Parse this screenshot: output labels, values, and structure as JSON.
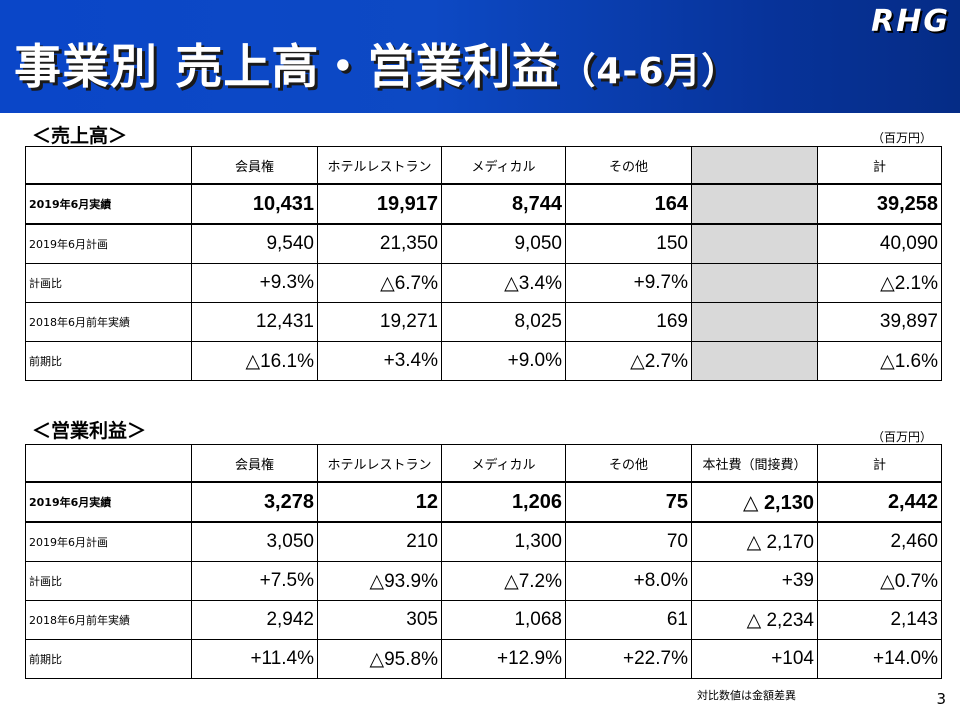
{
  "header": {
    "title_main": "事業別 売上高・営業利益",
    "title_suffix": "（4-6月）",
    "logo_text": "RHG"
  },
  "sales": {
    "section_label": "＜売上高＞",
    "unit": "（百万円）",
    "columns": [
      "",
      "会員権",
      "ホテルレストラン",
      "メディカル",
      "その他",
      "",
      "計"
    ],
    "rows": [
      {
        "label": "2019年6月実績",
        "values": [
          "10,431",
          "19,917",
          "8,744",
          "164",
          "",
          "39,258"
        ]
      },
      {
        "label": "2019年6月計画",
        "values": [
          "9,540",
          "21,350",
          "9,050",
          "150",
          "",
          "40,090"
        ]
      },
      {
        "label": "計画比",
        "values": [
          "+9.3%",
          "△6.7%",
          "△3.4%",
          "+9.7%",
          "",
          "△2.1%"
        ]
      },
      {
        "label": "2018年6月前年実績",
        "values": [
          "12,431",
          "19,271",
          "8,025",
          "169",
          "",
          "39,897"
        ]
      },
      {
        "label": "前期比",
        "values": [
          "△16.1%",
          "+3.4%",
          "+9.0%",
          "△2.7%",
          "",
          "△1.6%"
        ]
      }
    ]
  },
  "profit": {
    "section_label": "＜営業利益＞",
    "unit": "（百万円）",
    "columns": [
      "",
      "会員権",
      "ホテルレストラン",
      "メディカル",
      "その他",
      "本社費（間接費）",
      "計"
    ],
    "rows": [
      {
        "label": "2019年6月実績",
        "values": [
          "3,278",
          "12",
          "1,206",
          "75",
          "△ 2,130",
          "2,442"
        ]
      },
      {
        "label": "2019年6月計画",
        "values": [
          "3,050",
          "210",
          "1,300",
          "70",
          "△ 2,170",
          "2,460"
        ]
      },
      {
        "label": "計画比",
        "values": [
          "+7.5%",
          "△93.9%",
          "△7.2%",
          "+8.0%",
          "+39",
          "△0.7%"
        ]
      },
      {
        "label": "2018年6月前年実績",
        "values": [
          "2,942",
          "305",
          "1,068",
          "61",
          "△ 2,234",
          "2,143"
        ]
      },
      {
        "label": "前期比",
        "values": [
          "+11.4%",
          "△95.8%",
          "+12.9%",
          "+22.7%",
          "+104",
          "+14.0%"
        ]
      }
    ]
  },
  "footnote": "対比数値は金額差異",
  "page_number": "3"
}
